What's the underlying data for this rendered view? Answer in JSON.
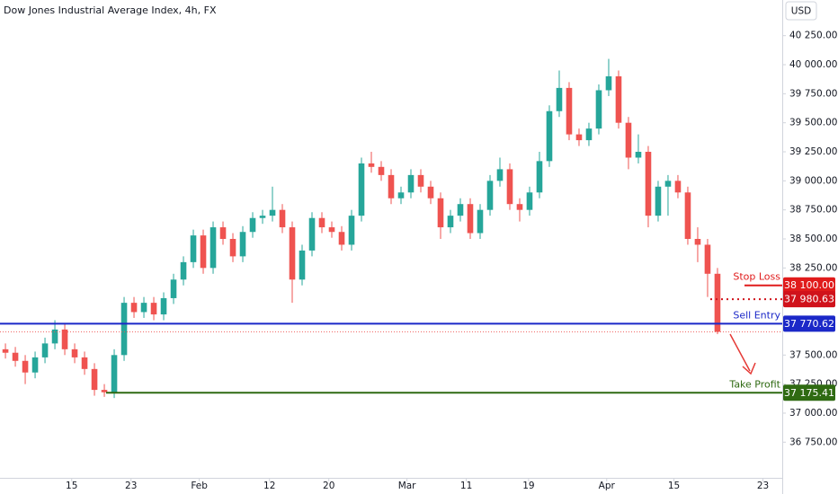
{
  "chart_data": {
    "type": "candlestick",
    "title": "Dow Jones Industrial Average Index, 4h, FX",
    "currency": "USD",
    "up_color": "#26a69a",
    "down_color": "#ef5350",
    "open": [
      37550,
      37520,
      37450,
      37350,
      37480,
      37600,
      37720,
      37550,
      37480,
      37380,
      37200,
      37180,
      37500,
      37950,
      37870,
      37950,
      37850,
      37990,
      38150,
      38300,
      38530,
      38250,
      38600,
      38500,
      38350,
      38560,
      38680,
      38700,
      38750,
      38600,
      38150,
      38400,
      38680,
      38600,
      38560,
      38450,
      38700,
      39150,
      39120,
      39050,
      38850,
      38900,
      39050,
      38950,
      38850,
      38600,
      38700,
      38800,
      38550,
      38750,
      39000,
      39100,
      38800,
      38750,
      38900,
      39170,
      39600,
      39800,
      39400,
      39350,
      39450,
      39780,
      39900,
      39500,
      39200,
      39250,
      38700,
      38950,
      39000,
      38900,
      38500,
      38450,
      38200
    ],
    "high": [
      37600,
      37570,
      37500,
      37530,
      37650,
      37800,
      37770,
      37600,
      37530,
      37430,
      37250,
      37550,
      38000,
      38000,
      38000,
      38000,
      38040,
      38200,
      38350,
      38580,
      38580,
      38650,
      38650,
      38550,
      38610,
      38730,
      38750,
      38950,
      38800,
      38650,
      38450,
      38730,
      38730,
      38650,
      38610,
      38750,
      39200,
      39250,
      39170,
      39100,
      38950,
      39100,
      39100,
      39000,
      38900,
      38750,
      38850,
      38850,
      38800,
      39050,
      39200,
      39150,
      38850,
      38950,
      39250,
      39650,
      39950,
      39850,
      39450,
      39500,
      39830,
      40050,
      39950,
      39550,
      39400,
      39300,
      39000,
      39050,
      39050,
      38950,
      38600,
      38500,
      38250
    ],
    "low": [
      37470,
      37400,
      37250,
      37300,
      37430,
      37550,
      37500,
      37430,
      37330,
      37150,
      37140,
      37130,
      37450,
      37820,
      37820,
      37800,
      37800,
      37940,
      38100,
      38250,
      38200,
      38200,
      38450,
      38300,
      38300,
      38510,
      38630,
      38650,
      38550,
      37950,
      38100,
      38350,
      38550,
      38510,
      38400,
      38400,
      38650,
      39070,
      39000,
      38800,
      38800,
      38850,
      38900,
      38800,
      38500,
      38550,
      38650,
      38500,
      38500,
      38700,
      38950,
      38750,
      38650,
      38700,
      38850,
      39120,
      39550,
      39350,
      39300,
      39300,
      39400,
      39730,
      39450,
      39100,
      39150,
      38600,
      38650,
      38700,
      38850,
      38450,
      38300,
      38000,
      37680
    ],
    "close": [
      37520,
      37450,
      37350,
      37480,
      37600,
      37720,
      37550,
      37480,
      37380,
      37200,
      37180,
      37500,
      37950,
      37870,
      37950,
      37850,
      37990,
      38150,
      38300,
      38530,
      38250,
      38600,
      38500,
      38350,
      38560,
      38680,
      38700,
      38750,
      38600,
      38150,
      38400,
      38680,
      38600,
      38560,
      38450,
      38700,
      39150,
      39120,
      39050,
      38850,
      38900,
      39050,
      38950,
      38850,
      38600,
      38700,
      38800,
      38550,
      38750,
      39000,
      39100,
      38800,
      38750,
      38900,
      39170,
      39600,
      39800,
      39400,
      39350,
      39450,
      39780,
      39900,
      39500,
      39200,
      39250,
      38700,
      38950,
      39000,
      38900,
      38500,
      38450,
      38200,
      37700
    ],
    "xlim": [
      -0.55,
      78.55
    ],
    "xticks": [
      {
        "value": 6.7,
        "label": "15"
      },
      {
        "value": 12.7,
        "label": "23"
      },
      {
        "value": 19.6,
        "label": "Feb"
      },
      {
        "value": 26.7,
        "label": "12"
      },
      {
        "value": 32.7,
        "label": "20"
      },
      {
        "value": 40.6,
        "label": "Mar"
      },
      {
        "value": 46.6,
        "label": "11"
      },
      {
        "value": 52.9,
        "label": "19"
      },
      {
        "value": 60.8,
        "label": "Apr"
      },
      {
        "value": 67.6,
        "label": "15"
      },
      {
        "value": 76.6,
        "label": "23"
      }
    ],
    "ylim": [
      36443,
      40557
    ],
    "yticks": [
      {
        "value": 36750,
        "label": "36 750.00"
      },
      {
        "value": 37000,
        "label": "37 000.00"
      },
      {
        "value": 37250,
        "label": "37 250.00"
      },
      {
        "value": 37500,
        "label": "37 500.00"
      },
      {
        "value": 38250,
        "label": "38 250.00"
      },
      {
        "value": 38500,
        "label": "38 500.00"
      },
      {
        "value": 38750,
        "label": "38 750.00"
      },
      {
        "value": 39000,
        "label": "39 000.00"
      },
      {
        "value": 39250,
        "label": "39 250.00"
      },
      {
        "value": 39500,
        "label": "39 500.00"
      },
      {
        "value": 39750,
        "label": "39 750.00"
      },
      {
        "value": 40000,
        "label": "40 000.00"
      },
      {
        "value": 40250,
        "label": "40 250.00"
      }
    ],
    "levels": [
      {
        "name": "Stop Loss",
        "value": 38100,
        "label": "38 100.00",
        "color": "#e01b1b"
      },
      {
        "value": 37980.63,
        "label": "37 980.63",
        "color": "#d0121b"
      },
      {
        "name": "Sell Entry",
        "value": 37770.62,
        "label": "37 770.62",
        "color": "#1b28c8"
      },
      {
        "name": "Take Profit",
        "value": 37175.41,
        "label": "37 175.41",
        "color": "#2f6a12"
      }
    ]
  }
}
